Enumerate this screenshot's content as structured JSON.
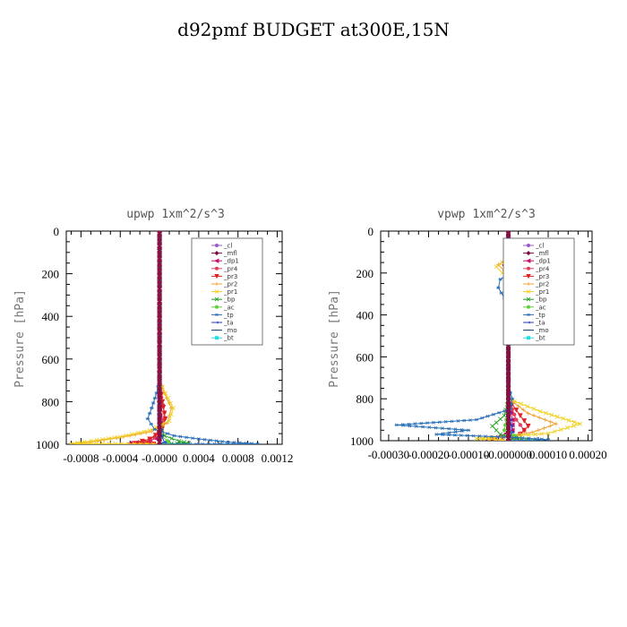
{
  "figure_title": "d92pmf  BUDGET at300E,15N",
  "chart_data": [
    {
      "type": "line",
      "title": "upwp   1xm^2/s^3",
      "ylabel": "Pressure [hPa]",
      "xlabel": "",
      "xlim": [
        -0.00095,
        0.00125
      ],
      "ylim": [
        1000,
        0
      ],
      "xticks": [
        -0.0008,
        -0.0004,
        0.0,
        0.0004,
        0.0008,
        0.0012
      ],
      "xtick_labels": [
        "-0.0008",
        "-0.0004",
        "-0.0000",
        "0.0004",
        "0.0008",
        "0.0012"
      ],
      "yticks": [
        0,
        200,
        400,
        600,
        800,
        1000
      ],
      "ytick_labels": [
        "0",
        "200",
        "400",
        "600",
        "800",
        "1000"
      ],
      "legend_position": "top-right",
      "series": [
        {
          "name": "_cl",
          "color": "#9a58c8",
          "marker": "circle",
          "points": [
            [
              0,
              0
            ],
            [
              0,
              200
            ],
            [
              0,
              400
            ],
            [
              0,
              600
            ],
            [
              0,
              800
            ],
            [
              0,
              1000
            ]
          ]
        },
        {
          "name": "_mfl",
          "color": "#7a0a4a",
          "marker": "diamond",
          "points": [
            [
              0,
              0
            ],
            [
              0,
              200
            ],
            [
              0,
              400
            ],
            [
              0,
              600
            ],
            [
              0,
              800
            ],
            [
              0,
              1000
            ]
          ]
        },
        {
          "name": "_dp1",
          "color": "#c8106a",
          "marker": "triangle-left",
          "points": [
            [
              0,
              0
            ],
            [
              0,
              200
            ],
            [
              0,
              400
            ],
            [
              0,
              600
            ],
            [
              0,
              800
            ],
            [
              1e-05,
              900
            ],
            [
              2e-05,
              960
            ],
            [
              -0.0001,
              985
            ],
            [
              -0.0003,
              995
            ],
            [
              0,
              1000
            ]
          ]
        },
        {
          "name": "_pr4",
          "color": "#e0405a",
          "marker": "circle",
          "points": [
            [
              0,
              0
            ],
            [
              0,
              400
            ],
            [
              0,
              700
            ],
            [
              2e-05,
              780
            ],
            [
              5e-05,
              850
            ],
            [
              3e-05,
              920
            ],
            [
              -5e-05,
              965
            ],
            [
              -0.00015,
              990
            ],
            [
              0,
              1000
            ]
          ]
        },
        {
          "name": "_pr3",
          "color": "#e02020",
          "marker": "triangle-down",
          "points": [
            [
              0,
              0
            ],
            [
              0,
              400
            ],
            [
              0,
              700
            ],
            [
              3e-05,
              800
            ],
            [
              6e-05,
              880
            ],
            [
              2e-05,
              940
            ],
            [
              -0.0001,
              975
            ],
            [
              -0.00025,
              995
            ],
            [
              0,
              1000
            ]
          ]
        },
        {
          "name": "_pr2",
          "color": "#f0a030",
          "marker": "cross",
          "points": [
            [
              0,
              0
            ],
            [
              0,
              400
            ],
            [
              0,
              700
            ],
            [
              5e-05,
              760
            ],
            [
              0.00012,
              830
            ],
            [
              8e-05,
              900
            ],
            [
              -8e-05,
              940
            ],
            [
              -0.0003,
              960
            ],
            [
              -0.0005,
              975
            ],
            [
              -0.0007,
              990
            ],
            [
              -0.00085,
              998
            ],
            [
              0,
              1000
            ]
          ]
        },
        {
          "name": "_pr1",
          "color": "#f0d020",
          "marker": "x",
          "points": [
            [
              0,
              0
            ],
            [
              0,
              400
            ],
            [
              0,
              700
            ],
            [
              6e-05,
              760
            ],
            [
              0.00014,
              830
            ],
            [
              0.0001,
              890
            ],
            [
              -0.0001,
              935
            ],
            [
              -0.0004,
              965
            ],
            [
              -0.0007,
              985
            ],
            [
              -0.0009,
              997
            ],
            [
              0,
              1000
            ]
          ]
        },
        {
          "name": "_bp",
          "color": "#20a020",
          "marker": "x",
          "points": [
            [
              0,
              0
            ],
            [
              0,
              400
            ],
            [
              0,
              900
            ],
            [
              5e-05,
              960
            ],
            [
              0.0002,
              985
            ],
            [
              0.0003,
              995
            ],
            [
              0,
              1000
            ]
          ]
        },
        {
          "name": "_ac",
          "color": "#60d040",
          "marker": "circle",
          "points": [
            [
              0,
              0
            ],
            [
              0,
              400
            ],
            [
              0,
              900
            ],
            [
              2e-05,
              960
            ],
            [
              8e-05,
              985
            ],
            [
              0.0001,
              995
            ],
            [
              0,
              1000
            ]
          ]
        },
        {
          "name": "_tp",
          "color": "#2a70b8",
          "marker": "star",
          "points": [
            [
              0,
              0
            ],
            [
              0,
              400
            ],
            [
              0,
              700
            ],
            [
              -3e-05,
              760
            ],
            [
              -8e-05,
              830
            ],
            [
              -0.00012,
              880
            ],
            [
              -5e-05,
              930
            ],
            [
              0.00015,
              960
            ],
            [
              0.0004,
              975
            ],
            [
              0.0007,
              990
            ],
            [
              0.001,
              998
            ],
            [
              0,
              1000
            ]
          ]
        },
        {
          "name": "_ta",
          "color": "#2040d0",
          "marker": "arrow",
          "points": [
            [
              0,
              0
            ],
            [
              0,
              400
            ],
            [
              0,
              900
            ],
            [
              2e-05,
              960
            ],
            [
              5e-05,
              990
            ],
            [
              0,
              1000
            ]
          ]
        },
        {
          "name": "_mo",
          "color": "#1a3a6a",
          "marker": "dash",
          "points": [
            [
              0,
              0
            ],
            [
              0,
              400
            ],
            [
              0,
              1000
            ]
          ]
        },
        {
          "name": "_bt",
          "color": "#20e0e0",
          "marker": "square",
          "points": [
            [
              0,
              0
            ],
            [
              0,
              400
            ],
            [
              0,
              1000
            ]
          ]
        }
      ]
    },
    {
      "type": "line",
      "title": "vpwp   1xm^2/s^3",
      "ylabel": "Pressure [hPa]",
      "xlabel": "",
      "xlim": [
        -0.00032,
        0.00021
      ],
      "ylim": [
        1000,
        0
      ],
      "xticks": [
        -0.0003,
        -0.0002,
        -0.0001,
        0.0,
        0.0001,
        0.0002
      ],
      "xtick_labels": [
        "-0.00030",
        "-0.00020",
        "-0.00010",
        "-0.000000",
        "0.00010",
        "0.00020"
      ],
      "yticks": [
        0,
        200,
        400,
        600,
        800,
        1000
      ],
      "ytick_labels": [
        "0",
        "200",
        "400",
        "600",
        "800",
        "1000"
      ],
      "legend_position": "top-right",
      "series": [
        {
          "name": "_cl",
          "color": "#9a58c8",
          "marker": "circle",
          "points": [
            [
              0,
              0
            ],
            [
              0,
              200
            ],
            [
              0,
              400
            ],
            [
              0,
              600
            ],
            [
              0,
              800
            ],
            [
              0,
              1000
            ]
          ]
        },
        {
          "name": "_mfl",
          "color": "#7a0a4a",
          "marker": "diamond",
          "points": [
            [
              0,
              0
            ],
            [
              0,
              200
            ],
            [
              0,
              400
            ],
            [
              0,
              600
            ],
            [
              0,
              800
            ],
            [
              0,
              1000
            ]
          ]
        },
        {
          "name": "_dp1",
          "color": "#c8106a",
          "marker": "triangle-left",
          "points": [
            [
              0,
              0
            ],
            [
              0,
              150
            ],
            [
              -5e-06,
              200
            ],
            [
              0,
              300
            ],
            [
              0,
              800
            ],
            [
              1e-05,
              900
            ],
            [
              1e-05,
              950
            ],
            [
              -2e-05,
              980
            ],
            [
              -5e-05,
              995
            ],
            [
              0,
              1000
            ]
          ]
        },
        {
          "name": "_pr4",
          "color": "#e0405a",
          "marker": "circle",
          "points": [
            [
              0,
              0
            ],
            [
              0,
              140
            ],
            [
              1e-05,
              180
            ],
            [
              5e-06,
              230
            ],
            [
              1e-05,
              280
            ],
            [
              0,
              330
            ],
            [
              0,
              800
            ],
            [
              2e-05,
              900
            ],
            [
              4e-05,
              950
            ],
            [
              2e-05,
              980
            ],
            [
              0,
              1000
            ]
          ]
        },
        {
          "name": "_pr3",
          "color": "#e02020",
          "marker": "triangle-down",
          "points": [
            [
              0,
              0
            ],
            [
              0,
              140
            ],
            [
              -1e-05,
              170
            ],
            [
              5e-06,
              220
            ],
            [
              8e-06,
              280
            ],
            [
              0,
              330
            ],
            [
              0,
              800
            ],
            [
              3e-05,
              880
            ],
            [
              5e-05,
              930
            ],
            [
              3e-05,
              970
            ],
            [
              0,
              1000
            ]
          ]
        },
        {
          "name": "_pr2",
          "color": "#f0a030",
          "marker": "cross",
          "points": [
            [
              0,
              0
            ],
            [
              0,
              130
            ],
            [
              -2.5e-05,
              160
            ],
            [
              -1e-05,
              190
            ],
            [
              2e-05,
              230
            ],
            [
              3e-05,
              270
            ],
            [
              1e-05,
              320
            ],
            [
              0,
              360
            ],
            [
              0,
              800
            ],
            [
              5e-05,
              870
            ],
            [
              0.00012,
              920
            ],
            [
              6e-05,
              960
            ],
            [
              -5e-05,
              990
            ],
            [
              0,
              1000
            ]
          ]
        },
        {
          "name": "_pr1",
          "color": "#f0d020",
          "marker": "x",
          "points": [
            [
              0,
              0
            ],
            [
              0,
              130
            ],
            [
              -3e-05,
              170
            ],
            [
              -1.5e-05,
              200
            ],
            [
              3e-05,
              240
            ],
            [
              4e-05,
              280
            ],
            [
              2e-05,
              320
            ],
            [
              0,
              360
            ],
            [
              0,
              800
            ],
            [
              8e-05,
              860
            ],
            [
              0.00018,
              920
            ],
            [
              0.0001,
              965
            ],
            [
              -8e-05,
              990
            ],
            [
              0,
              1000
            ]
          ]
        },
        {
          "name": "_bp",
          "color": "#20a020",
          "marker": "x",
          "points": [
            [
              0,
              0
            ],
            [
              0,
              800
            ],
            [
              -1e-05,
              880
            ],
            [
              -4e-05,
              930
            ],
            [
              -2e-05,
              970
            ],
            [
              2e-05,
              990
            ],
            [
              0,
              1000
            ]
          ]
        },
        {
          "name": "_ac",
          "color": "#60d040",
          "marker": "circle",
          "points": [
            [
              0,
              0
            ],
            [
              0,
              800
            ],
            [
              -5e-06,
              900
            ],
            [
              -1e-05,
              950
            ],
            [
              3e-05,
              990
            ],
            [
              6e-05,
              997
            ],
            [
              0,
              1000
            ]
          ]
        },
        {
          "name": "_tp",
          "color": "#2a70b8",
          "marker": "star",
          "points": [
            [
              0,
              0
            ],
            [
              0,
              110
            ],
            [
              1.5e-05,
              150
            ],
            [
              1e-05,
              190
            ],
            [
              -2e-05,
              230
            ],
            [
              -2.5e-05,
              270
            ],
            [
              -1e-05,
              320
            ],
            [
              0,
              360
            ],
            [
              0,
              740
            ],
            [
              1e-05,
              800
            ],
            [
              5e-06,
              850
            ],
            [
              -8e-05,
              900
            ],
            [
              -0.00028,
              925
            ],
            [
              -0.0001,
              950
            ],
            [
              -0.00018,
              970
            ],
            [
              2e-05,
              985
            ],
            [
              0.0001,
              995
            ],
            [
              0,
              1000
            ]
          ]
        },
        {
          "name": "_ta",
          "color": "#2040d0",
          "marker": "arrow",
          "points": [
            [
              0,
              0
            ],
            [
              0,
              800
            ],
            [
              5e-06,
              900
            ],
            [
              1e-05,
              960
            ],
            [
              0,
              1000
            ]
          ]
        },
        {
          "name": "_mo",
          "color": "#1a3a6a",
          "marker": "dash",
          "points": [
            [
              0,
              0
            ],
            [
              0,
              1000
            ]
          ]
        },
        {
          "name": "_bt",
          "color": "#20e0e0",
          "marker": "square",
          "points": [
            [
              0,
              0
            ],
            [
              0,
              1000
            ]
          ]
        }
      ]
    }
  ]
}
